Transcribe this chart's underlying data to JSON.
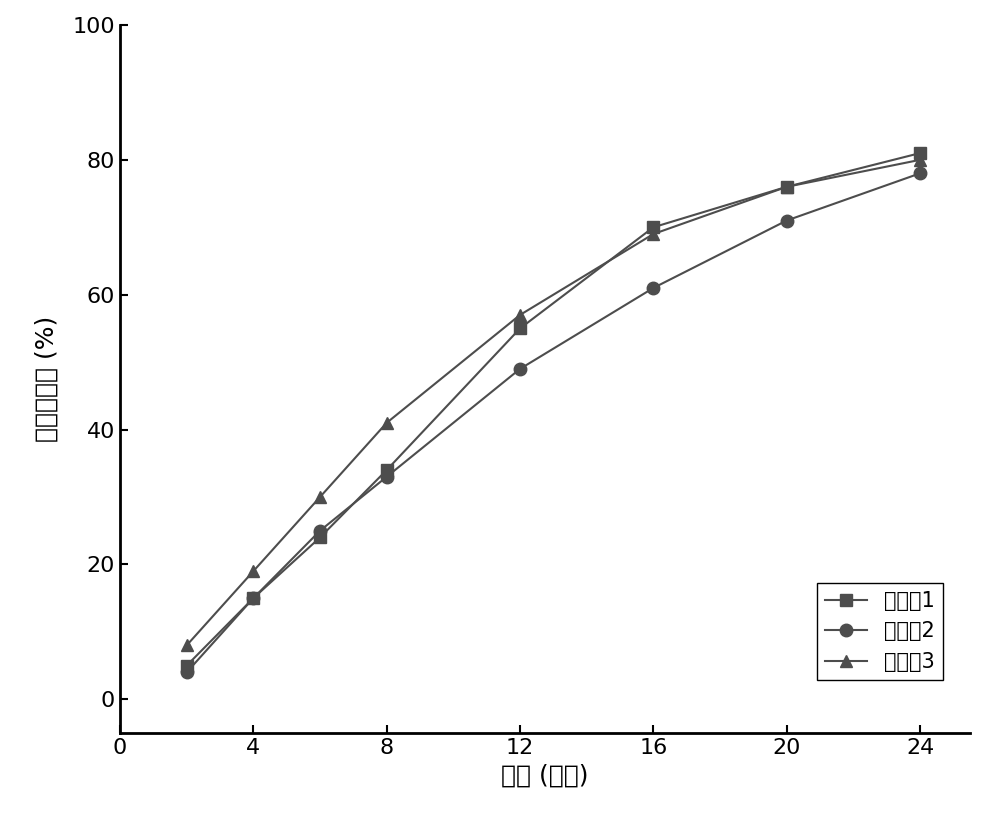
{
  "series": [
    {
      "label": "实施例1",
      "x": [
        2,
        4,
        6,
        8,
        12,
        16,
        20,
        24
      ],
      "y": [
        5,
        15,
        24,
        34,
        55,
        70,
        76,
        81
      ],
      "marker": "s",
      "color": "#4d4d4d",
      "markersize": 9
    },
    {
      "label": "实施例2",
      "x": [
        2,
        4,
        6,
        8,
        12,
        16,
        20,
        24
      ],
      "y": [
        4,
        15,
        25,
        33,
        49,
        61,
        71,
        78
      ],
      "marker": "o",
      "color": "#4d4d4d",
      "markersize": 9
    },
    {
      "label": "实施例3",
      "x": [
        2,
        4,
        6,
        8,
        12,
        16,
        20,
        24
      ],
      "y": [
        8,
        19,
        30,
        41,
        57,
        69,
        76,
        80
      ],
      "marker": "^",
      "color": "#4d4d4d",
      "markersize": 9
    }
  ],
  "xlabel": "时间 (小时)",
  "ylabel": "累积释放度 (%)",
  "xlim": [
    0,
    25.5
  ],
  "ylim": [
    -5,
    100
  ],
  "xticks": [
    0,
    4,
    8,
    12,
    16,
    20,
    24
  ],
  "yticks": [
    0,
    20,
    40,
    60,
    80,
    100
  ],
  "linewidth": 1.5,
  "background_color": "#ffffff",
  "legend_fontsize": 15,
  "axis_fontsize": 18,
  "tick_fontsize": 16
}
